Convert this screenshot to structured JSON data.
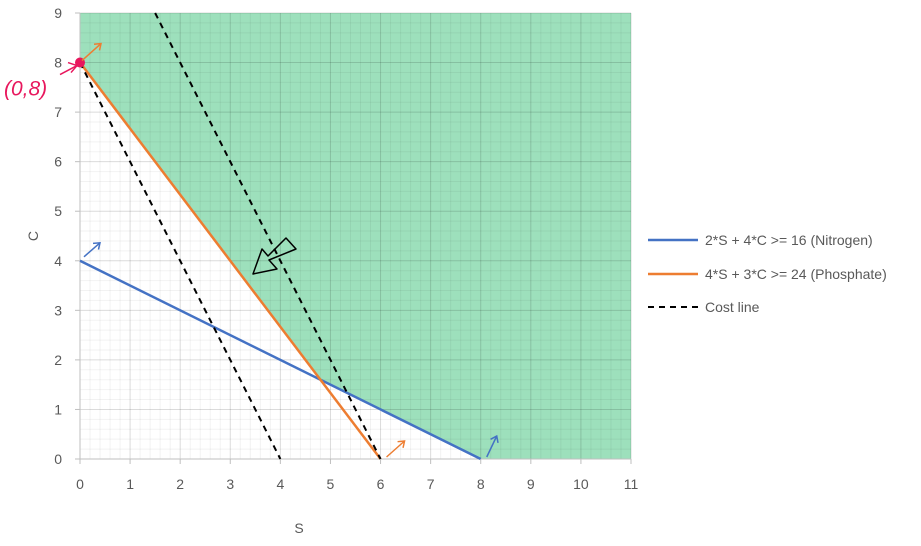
{
  "chart_data": {
    "type": "line",
    "title": "",
    "xlabel": "S",
    "ylabel": "C",
    "xlim": [
      0,
      11
    ],
    "ylim": [
      0,
      9
    ],
    "x_ticks": [
      0,
      1,
      2,
      3,
      4,
      5,
      6,
      7,
      8,
      9,
      10,
      11
    ],
    "y_ticks": [
      0,
      1,
      2,
      3,
      4,
      5,
      6,
      7,
      8,
      9
    ],
    "grid": true,
    "legend_position": "right",
    "feasible_region": {
      "color": "#9de0bc",
      "vertices": [
        [
          0,
          9
        ],
        [
          11,
          9
        ],
        [
          11,
          0
        ],
        [
          8,
          0
        ],
        [
          4.8,
          1.6
        ],
        [
          0,
          8
        ]
      ]
    },
    "series": [
      {
        "name": "2*S + 4*C >= 16 (Nitrogen)",
        "color": "#4472c4",
        "dash": "solid",
        "points": [
          [
            0,
            4
          ],
          [
            8,
            0
          ]
        ]
      },
      {
        "name": "4*S + 3*C >= 24 (Phosphate)",
        "color": "#ed7d31",
        "dash": "solid",
        "points": [
          [
            0,
            8
          ],
          [
            6,
            0
          ]
        ]
      },
      {
        "name": "Cost line",
        "color": "#000000",
        "dash": "dashed",
        "points": [
          [
            0,
            8
          ],
          [
            4,
            0
          ]
        ]
      },
      {
        "name": "",
        "color": "#000000",
        "dash": "dashed",
        "points": [
          [
            1.5,
            9
          ],
          [
            6,
            0
          ]
        ]
      }
    ],
    "annotations": {
      "point_label": "(0,8)",
      "point": [
        0,
        8
      ],
      "point_color": "#e8175d"
    }
  }
}
